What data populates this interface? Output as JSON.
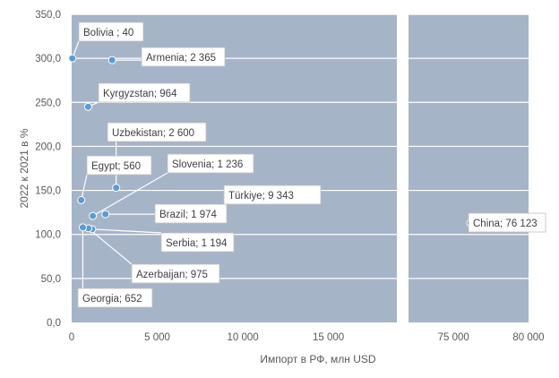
{
  "chart_data": {
    "type": "scatter",
    "xlabel": "Импорт в РФ, млн USD",
    "ylabel": "2022 к 2021 в %",
    "ylim": [
      0,
      350
    ],
    "yticks": [
      "0,0",
      "50,0",
      "100,0",
      "150,0",
      "200,0",
      "250,0",
      "300,0",
      "350,0"
    ],
    "x_axis_break": true,
    "xlim_left": [
      0,
      19000
    ],
    "xlim_right": [
      72000,
      80000
    ],
    "xticks_left": [
      "0",
      "5 000",
      "10 000",
      "15 000"
    ],
    "xticks_right": [
      "75 000",
      "80 000"
    ],
    "grid": "horizontal",
    "plot_background": "#a6b4c8",
    "marker_color": "#5b9bd5",
    "points": [
      {
        "label": "Bolivia ;  40",
        "x": 40,
        "y": 300
      },
      {
        "label": "Armenia; 2 365",
        "x": 2365,
        "y": 298
      },
      {
        "label": "Kyrgyzstan;  964",
        "x": 964,
        "y": 245
      },
      {
        "label": "Uzbekistan; 2 600",
        "x": 2600,
        "y": 153
      },
      {
        "label": "Egypt;  560",
        "x": 560,
        "y": 139
      },
      {
        "label": "Slovenia; 1 236",
        "x": 1236,
        "y": 121
      },
      {
        "label": "Türkiye; 9 343",
        "x": 9343,
        "y": 144
      },
      {
        "label": "Brazil; 1 974",
        "x": 1974,
        "y": 123
      },
      {
        "label": "Serbia; 1 194",
        "x": 1194,
        "y": 106
      },
      {
        "label": "Azerbaijan;  975",
        "x": 975,
        "y": 107
      },
      {
        "label": "Georgia;  652",
        "x": 652,
        "y": 108
      },
      {
        "label": "China; 76 123",
        "x": 76123,
        "y": 113
      }
    ]
  }
}
